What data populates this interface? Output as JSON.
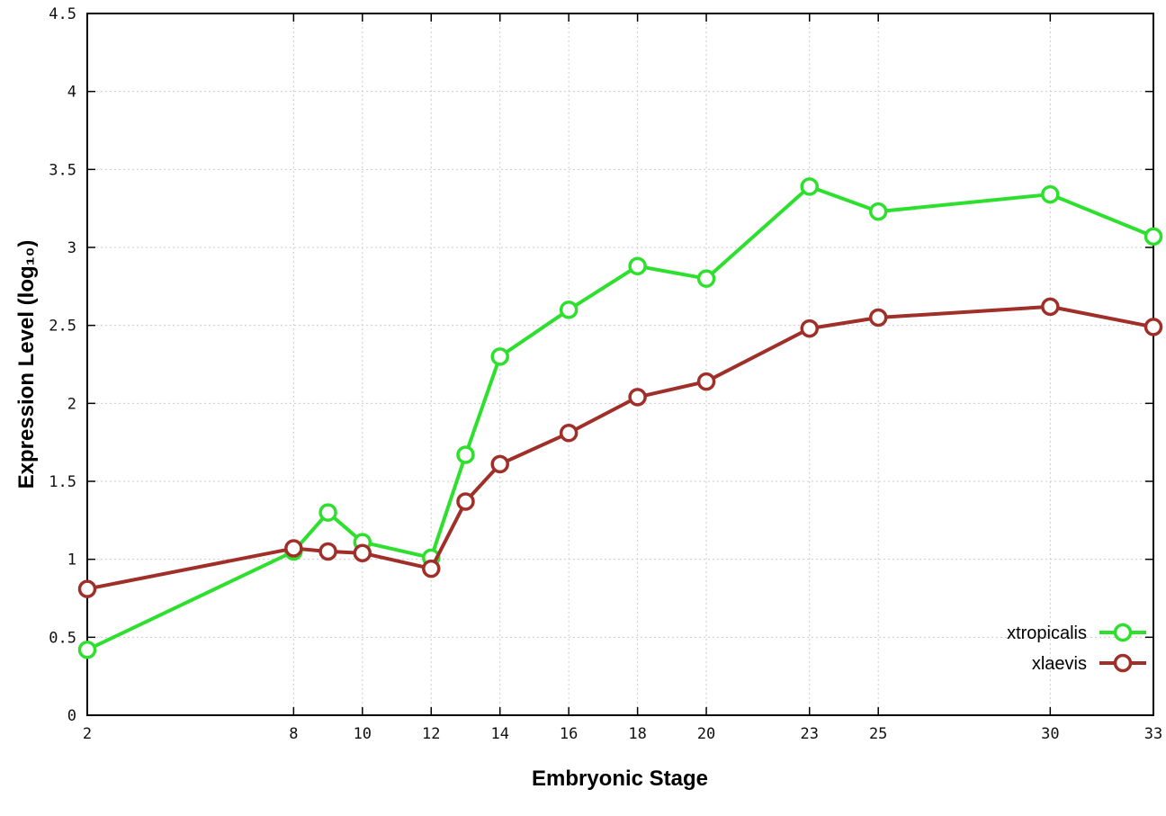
{
  "chart_data": {
    "type": "line",
    "title": "",
    "xlabel": "Embryonic Stage",
    "ylabel": "Expression Level (log₁₀)",
    "x": [
      2,
      8,
      9,
      10,
      12,
      13,
      14,
      16,
      18,
      20,
      23,
      25,
      30,
      33
    ],
    "xlim": [
      2,
      33
    ],
    "ylim": [
      0,
      4.5
    ],
    "xticks": [
      2,
      8,
      10,
      12,
      14,
      16,
      18,
      20,
      23,
      25,
      30,
      33
    ],
    "yticks": [
      0,
      0.5,
      1,
      1.5,
      2,
      2.5,
      3,
      3.5,
      4,
      4.5
    ],
    "grid": true,
    "legend_position": "bottom-right",
    "background_color": "#ffffff",
    "series": [
      {
        "name": "xtropicalis",
        "color": "#2ee02e",
        "values": [
          0.42,
          1.05,
          1.3,
          1.11,
          1.01,
          1.67,
          2.3,
          2.6,
          2.88,
          2.8,
          3.39,
          3.23,
          3.34,
          3.07
        ]
      },
      {
        "name": "xlaevis",
        "color": "#9f2f28",
        "values": [
          0.81,
          1.07,
          1.05,
          1.04,
          0.94,
          1.37,
          1.61,
          1.81,
          2.04,
          2.14,
          2.48,
          2.55,
          2.62,
          2.49
        ]
      }
    ]
  }
}
